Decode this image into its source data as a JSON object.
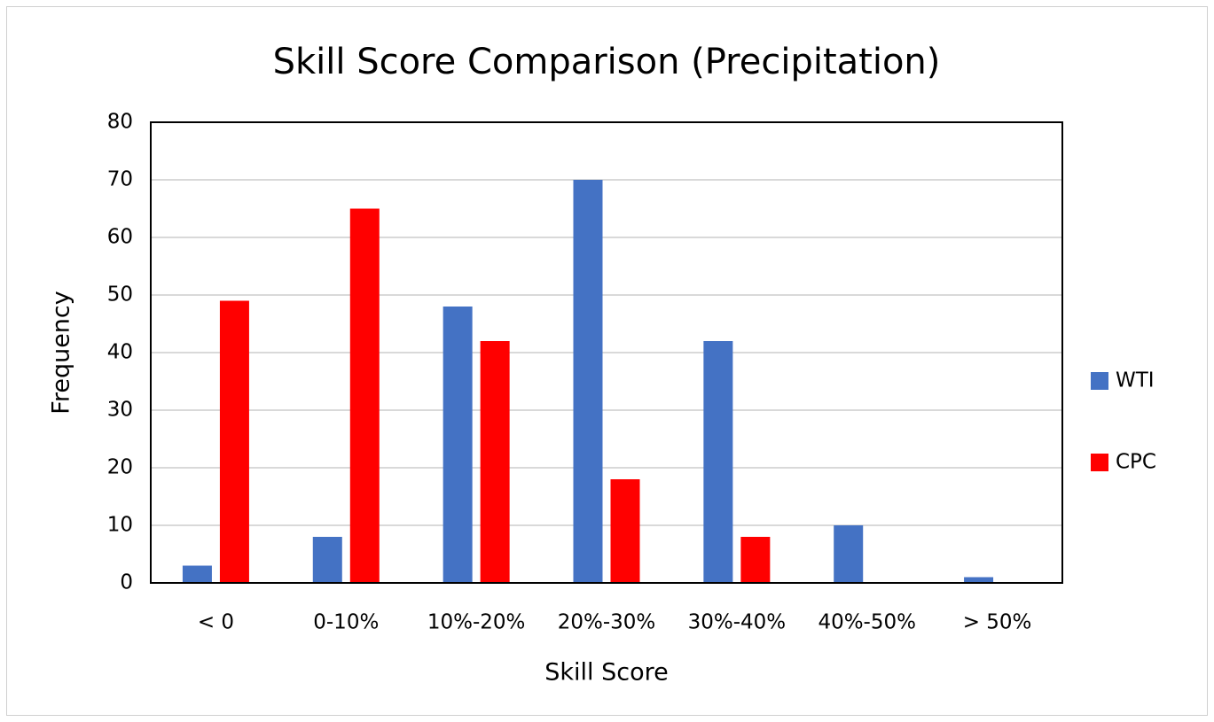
{
  "chart_data": {
    "type": "bar",
    "title": "Skill Score Comparison (Precipitation)",
    "x_label": "Skill Score",
    "y_label": "Frequency",
    "categories": [
      "< 0",
      "0-10%",
      "10%-20%",
      "20%-30%",
      "30%-40%",
      "40%-50%",
      "> 50%"
    ],
    "series": [
      {
        "name": "WTI",
        "color": "#4472c4",
        "values": [
          3,
          8,
          48,
          70,
          42,
          10,
          1
        ]
      },
      {
        "name": "CPC",
        "color": "#ff0000",
        "values": [
          49,
          65,
          42,
          18,
          8,
          0,
          0
        ]
      }
    ],
    "ylim": [
      0,
      80
    ],
    "yticks": [
      0,
      10,
      20,
      30,
      40,
      50,
      60,
      70,
      80
    ],
    "grid": true,
    "legend": "right"
  }
}
